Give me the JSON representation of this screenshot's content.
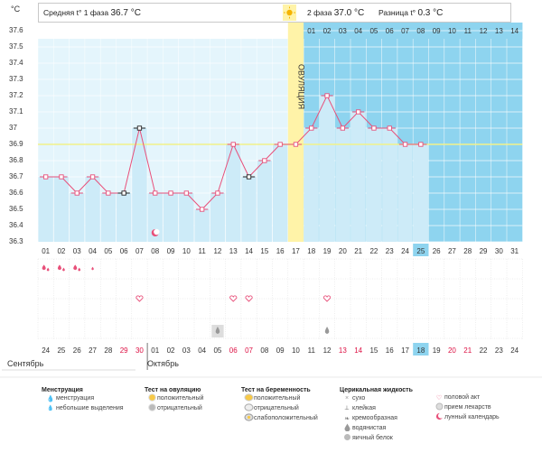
{
  "unit": "°C",
  "header": {
    "phase1_label": "Средняя t° 1 фаза",
    "phase1_value": "36.7 °C",
    "phase2_label": "2 фаза",
    "phase2_value": "37.0 °C",
    "diff_label": "Разница t°",
    "diff_value": "0.3 °C"
  },
  "ovulation_label": "ОВУЛЯЦИЯ",
  "chart_data": {
    "type": "line",
    "ylabel": "°C",
    "ylim": [
      36.3,
      37.65
    ],
    "yticks": [
      "36.3",
      "36.4",
      "36.5",
      "36.6",
      "36.7",
      "36.8",
      "36.9",
      "37",
      "37.1",
      "37.2",
      "37.3",
      "37.4",
      "37.5",
      "37.6"
    ],
    "coverline": 36.9,
    "ovulation_day": 17,
    "current_day": 25,
    "cycle_days": [
      "01",
      "02",
      "03",
      "04",
      "05",
      "06",
      "07",
      "08",
      "09",
      "10",
      "11",
      "12",
      "13",
      "14",
      "15",
      "16",
      "17",
      "18",
      "19",
      "20",
      "21",
      "22",
      "23",
      "24",
      "25",
      "26",
      "27",
      "28",
      "29",
      "30",
      "31"
    ],
    "phase2_days": [
      "01",
      "02",
      "03",
      "04",
      "05",
      "06",
      "07",
      "08",
      "09",
      "10",
      "11",
      "12",
      "13",
      "14"
    ],
    "series": [
      {
        "values": [
          36.7,
          36.7,
          36.6,
          36.7,
          36.6,
          36.6,
          37.0,
          36.6,
          36.6,
          36.6,
          36.5,
          36.6,
          36.9,
          36.7,
          36.8,
          36.9,
          36.9,
          37.0,
          37.2,
          37.0,
          37.1,
          37.0,
          37.0,
          36.9,
          36.9
        ]
      }
    ],
    "highlighted_days": [
      6,
      7,
      14
    ],
    "calendar_dates": [
      "24",
      "25",
      "26",
      "27",
      "28",
      "29",
      "30",
      "01",
      "02",
      "03",
      "04",
      "05",
      "06",
      "07",
      "08",
      "09",
      "10",
      "11",
      "12",
      "13",
      "14",
      "15",
      "16",
      "17",
      "18",
      "19",
      "20",
      "21",
      "22",
      "23",
      "24"
    ],
    "red_date_days": [
      6,
      7,
      13,
      14,
      20,
      21,
      27,
      28
    ],
    "months": [
      "Сентябрь",
      "Октябрь"
    ],
    "menstruation_days": [
      1,
      2,
      3
    ],
    "spotting_days": [
      4
    ],
    "intercourse_days": [
      7,
      13,
      14,
      19
    ],
    "ovulation_test_negative_days": [
      12
    ],
    "cervical_watery_days": [
      12,
      19
    ],
    "lunar_calendar_days": [
      8
    ]
  },
  "legend": {
    "menstruation": {
      "title": "Менструация",
      "items": [
        {
          "icon": "drop-large-icon",
          "label": "менструация"
        },
        {
          "icon": "drop-small-icon",
          "label": "небольшие выделения"
        }
      ]
    },
    "ovulation_test": {
      "title": "Тест на овуляцию",
      "items": [
        {
          "icon": "positive-test-icon",
          "label": "положительный"
        },
        {
          "icon": "negative-test-icon",
          "label": "отрицательный"
        }
      ]
    },
    "pregnancy_test": {
      "title": "Тест на беременность",
      "items": [
        {
          "icon": "positive-pregnancy-icon",
          "label": "положительный"
        },
        {
          "icon": "negative-pregnancy-icon",
          "label": "отрицательный"
        },
        {
          "icon": "weak-positive-pregnancy-icon",
          "label": "слабоположительный"
        }
      ]
    },
    "cervical": {
      "title": "Церикальная жидкость",
      "items": [
        {
          "icon": "dry-icon",
          "label": "сухо"
        },
        {
          "icon": "sticky-icon",
          "label": "клейкая"
        },
        {
          "icon": "creamy-icon",
          "label": "кремообразная"
        },
        {
          "icon": "watery-icon",
          "label": "водянистая"
        },
        {
          "icon": "egg-white-icon",
          "label": "яичный белок"
        }
      ]
    },
    "other": {
      "items": [
        {
          "icon": "heart-icon",
          "label": "половой акт"
        },
        {
          "icon": "pill-icon",
          "label": "прием лекарств"
        },
        {
          "icon": "moon-icon",
          "label": "лунный календарь"
        }
      ]
    }
  },
  "colors": {
    "phase2_bg": "#8ed4ef",
    "grid_bg": "#e4f5fc",
    "bar": "#cdebf8",
    "line": "#e8507a",
    "ovulation": "#fff3a8",
    "coverline": "#f2f28a",
    "current_day": "#8ed4ef",
    "red_text": "#dd1144"
  }
}
